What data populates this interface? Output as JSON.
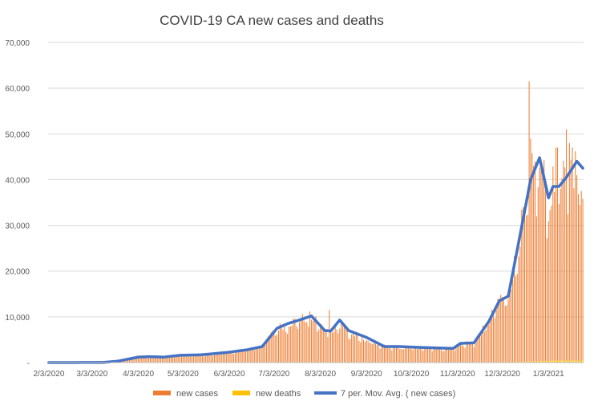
{
  "chart_data": {
    "type": "bar",
    "title": "COVID-19 CA new cases and deaths",
    "xlabel": "",
    "ylabel": "",
    "ylim": [
      0,
      70000
    ],
    "yticks": [
      0,
      10000,
      20000,
      30000,
      40000,
      50000,
      60000,
      70000
    ],
    "ytick_labels": [
      "-",
      "10,000",
      "20,000",
      "30,000",
      "40,000",
      "50,000",
      "60,000",
      "70,000"
    ],
    "x_start_date": "2020-02-03",
    "x_end_date": "2021-01-26",
    "xtick_labels": [
      "2/3/2020",
      "3/3/2020",
      "4/3/2020",
      "5/3/2020",
      "6/3/2020",
      "7/3/2020",
      "8/3/2020",
      "9/3/2020",
      "10/3/2020",
      "11/3/2020",
      "12/3/2020",
      "1/3/2021"
    ],
    "grid": "horizontal",
    "legend_position": "bottom",
    "colors": {
      "cases": "#ED7D31",
      "deaths": "#FFC000",
      "avg": "#4472C4",
      "grid": "#D9D9D9",
      "axis_text": "#595959"
    },
    "series": [
      {
        "name": "new cases",
        "kind": "bar",
        "description": "daily new cases (estimated)",
        "keyframes": [
          [
            "2020-02-03",
            0
          ],
          [
            "2020-03-10",
            50
          ],
          [
            "2020-03-20",
            500
          ],
          [
            "2020-04-01",
            1200
          ],
          [
            "2020-04-10",
            1300
          ],
          [
            "2020-04-20",
            1200
          ],
          [
            "2020-05-01",
            1700
          ],
          [
            "2020-05-15",
            1700
          ],
          [
            "2020-06-01",
            2200
          ],
          [
            "2020-06-15",
            2900
          ],
          [
            "2020-06-25",
            4000
          ],
          [
            "2020-07-05",
            7500
          ],
          [
            "2020-07-12",
            8500
          ],
          [
            "2020-07-20",
            9400
          ],
          [
            "2020-07-28",
            10000
          ],
          [
            "2020-08-06",
            7000
          ],
          [
            "2020-08-10",
            6500
          ],
          [
            "2020-08-16",
            9000
          ],
          [
            "2020-08-22",
            6500
          ],
          [
            "2020-09-03",
            5000
          ],
          [
            "2020-09-15",
            3500
          ],
          [
            "2020-09-25",
            3300
          ],
          [
            "2020-10-10",
            3300
          ],
          [
            "2020-10-31",
            3200
          ],
          [
            "2020-11-05",
            4200
          ],
          [
            "2020-11-14",
            4500
          ],
          [
            "2020-11-24",
            9000
          ],
          [
            "2020-12-01",
            14000
          ],
          [
            "2020-12-07",
            14500
          ],
          [
            "2020-12-15",
            28000
          ],
          [
            "2020-12-22",
            40000
          ],
          [
            "2020-12-28",
            44000
          ],
          [
            "2021-01-03",
            36000
          ],
          [
            "2021-01-06",
            38000
          ],
          [
            "2021-01-10",
            38000
          ],
          [
            "2021-01-15",
            40000
          ],
          [
            "2021-01-20",
            43000
          ],
          [
            "2021-01-26",
            39000
          ]
        ],
        "spikes": [
          [
            "2020-08-09",
            11500
          ],
          [
            "2020-12-21",
            61500
          ],
          [
            "2020-12-22",
            49000
          ],
          [
            "2020-12-29",
            42000
          ],
          [
            "2021-01-08",
            47000
          ],
          [
            "2021-01-09",
            47000
          ],
          [
            "2021-01-15",
            51000
          ],
          [
            "2021-01-17",
            48000
          ],
          [
            "2021-01-19",
            47000
          ]
        ]
      },
      {
        "name": "new deaths",
        "kind": "bar",
        "description": "daily new deaths (estimated)",
        "keyframes": [
          [
            "2020-02-03",
            0
          ],
          [
            "2020-04-01",
            30
          ],
          [
            "2020-07-15",
            100
          ],
          [
            "2020-08-01",
            130
          ],
          [
            "2020-10-15",
            60
          ],
          [
            "2020-12-01",
            60
          ],
          [
            "2020-12-20",
            250
          ],
          [
            "2021-01-10",
            500
          ],
          [
            "2021-01-26",
            450
          ]
        ]
      },
      {
        "name": "7 per. Mov. Avg. ( new cases)",
        "kind": "line",
        "keyframes": [
          [
            "2020-02-03",
            0
          ],
          [
            "2020-03-10",
            20
          ],
          [
            "2020-03-20",
            300
          ],
          [
            "2020-04-03",
            1200
          ],
          [
            "2020-04-10",
            1300
          ],
          [
            "2020-04-20",
            1200
          ],
          [
            "2020-05-01",
            1600
          ],
          [
            "2020-05-15",
            1700
          ],
          [
            "2020-06-01",
            2200
          ],
          [
            "2020-06-15",
            2800
          ],
          [
            "2020-06-25",
            3500
          ],
          [
            "2020-07-05",
            7500
          ],
          [
            "2020-07-12",
            8500
          ],
          [
            "2020-07-20",
            9300
          ],
          [
            "2020-07-28",
            10200
          ],
          [
            "2020-08-06",
            7000
          ],
          [
            "2020-08-10",
            6900
          ],
          [
            "2020-08-16",
            9300
          ],
          [
            "2020-08-22",
            7000
          ],
          [
            "2020-09-03",
            5500
          ],
          [
            "2020-09-15",
            3500
          ],
          [
            "2020-09-25",
            3500
          ],
          [
            "2020-10-10",
            3300
          ],
          [
            "2020-10-31",
            3100
          ],
          [
            "2020-11-05",
            4200
          ],
          [
            "2020-11-14",
            4300
          ],
          [
            "2020-11-24",
            9000
          ],
          [
            "2020-12-01",
            13500
          ],
          [
            "2020-12-07",
            14500
          ],
          [
            "2020-12-15",
            28000
          ],
          [
            "2020-12-22",
            40000
          ],
          [
            "2020-12-28",
            44800
          ],
          [
            "2021-01-03",
            36000
          ],
          [
            "2021-01-06",
            38500
          ],
          [
            "2021-01-10",
            38500
          ],
          [
            "2021-01-15",
            40500
          ],
          [
            "2021-01-22",
            44000
          ],
          [
            "2021-01-26",
            42500
          ]
        ]
      }
    ]
  }
}
